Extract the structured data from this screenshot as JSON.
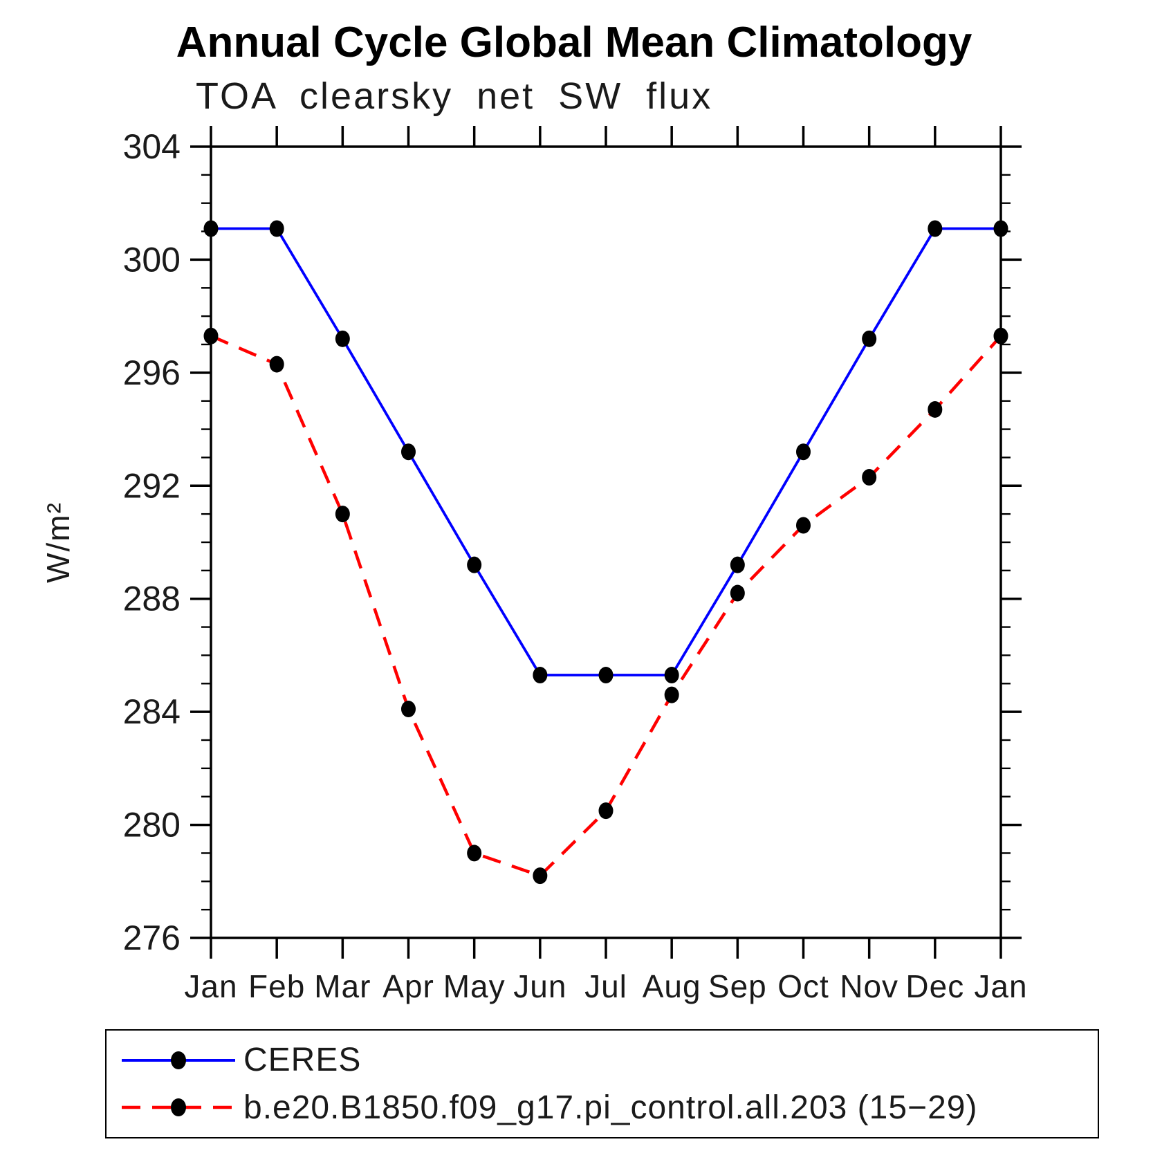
{
  "title": "Annual Cycle Global Mean Climatology",
  "subtitle": "TOA clearsky net SW flux",
  "chart_data": {
    "type": "line",
    "categories": [
      "Jan",
      "Feb",
      "Mar",
      "Apr",
      "May",
      "Jun",
      "Jul",
      "Aug",
      "Sep",
      "Oct",
      "Nov",
      "Dec",
      "Jan"
    ],
    "xlabel": "",
    "ylabel": "W/m²",
    "ylim": [
      276,
      304
    ],
    "ytick_major": [
      276,
      280,
      284,
      288,
      292,
      296,
      300,
      304
    ],
    "ytick_minor_step": 1,
    "grid": false,
    "legend_position": "bottom",
    "axis_color": "#000000",
    "series": [
      {
        "name": "CERES",
        "color": "#0000ff",
        "line_style": "solid",
        "marker": "circle",
        "marker_color": "#000000",
        "values": [
          301.1,
          301.1,
          297.2,
          293.2,
          289.2,
          285.3,
          285.3,
          285.3,
          289.2,
          293.2,
          297.2,
          301.1,
          301.1
        ]
      },
      {
        "name": "b.e20.B1850.f09_g17.pi_control.all.203 (15−29)",
        "color": "#ff0000",
        "line_style": "dashed",
        "marker": "circle",
        "marker_color": "#000000",
        "values": [
          297.3,
          296.3,
          291.0,
          284.1,
          279.0,
          278.2,
          280.5,
          284.6,
          288.2,
          290.6,
          292.3,
          294.7,
          297.3
        ]
      }
    ]
  }
}
